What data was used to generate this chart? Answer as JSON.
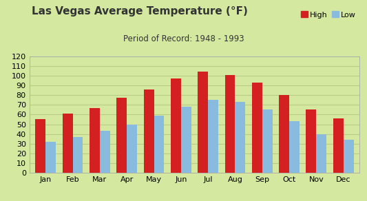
{
  "title": "Las Vegas Average Temperature (°F)",
  "subtitle": "Period of Record: 1948 - 1993",
  "months": [
    "Jan",
    "Feb",
    "Mar",
    "Apr",
    "May",
    "Jun",
    "Jul",
    "Aug",
    "Sep",
    "Oct",
    "Nov",
    "Dec"
  ],
  "high": [
    55,
    61,
    67,
    77,
    86,
    97,
    104,
    101,
    93,
    80,
    65,
    56
  ],
  "low": [
    32,
    37,
    43,
    50,
    59,
    68,
    75,
    73,
    65,
    53,
    40,
    34
  ],
  "high_color": "#d42020",
  "low_color": "#88bbdd",
  "bg_color": "#d4e8a0",
  "grid_color": "#b8cc88",
  "ylim": [
    0,
    120
  ],
  "yticks": [
    0,
    10,
    20,
    30,
    40,
    50,
    60,
    70,
    80,
    90,
    100,
    110,
    120
  ],
  "bar_width": 0.38,
  "legend_high": "High",
  "legend_low": "Low",
  "title_fontsize": 11,
  "subtitle_fontsize": 8.5,
  "tick_fontsize": 8
}
